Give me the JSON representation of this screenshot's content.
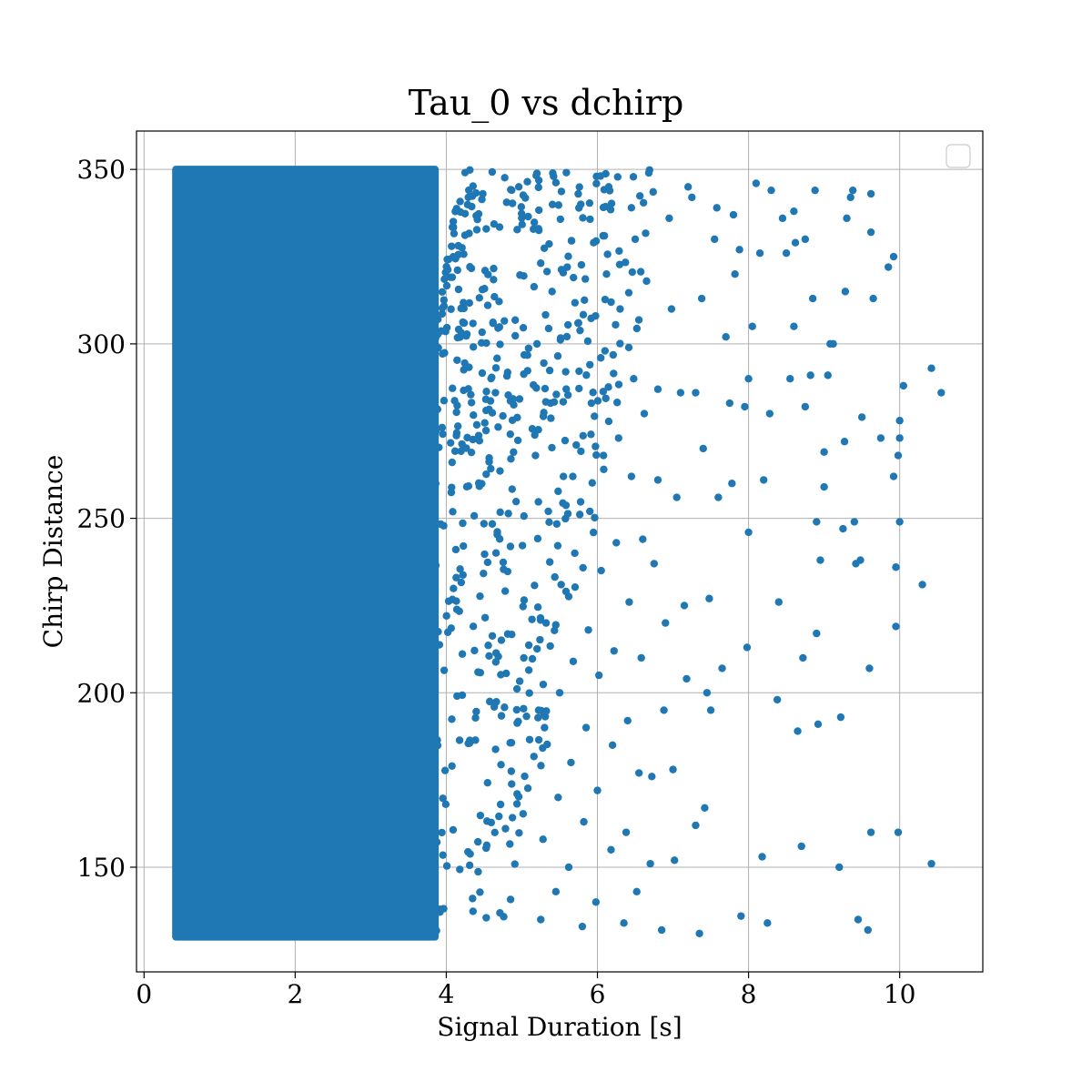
{
  "chart_data": {
    "type": "scatter",
    "title": "Tau_0 vs dchirp",
    "xlabel": "Signal Duration [s]",
    "ylabel": "Chirp Distance",
    "xlim": [
      -0.1,
      11.1
    ],
    "ylim": [
      120,
      361
    ],
    "xticks": [
      0,
      2,
      4,
      6,
      8,
      10
    ],
    "yticks": [
      150,
      200,
      250,
      300,
      350
    ],
    "grid": true,
    "legend": "top-right",
    "legend_entries": [],
    "color": "#1f77b4",
    "dense_region": {
      "x": [
        0.42,
        3.9
      ],
      "y": [
        130,
        350
      ]
    },
    "points": [
      [
        10.55,
        286
      ],
      [
        10.42,
        293
      ],
      [
        10.3,
        231
      ],
      [
        10.42,
        151
      ],
      [
        10.05,
        288
      ],
      [
        10.0,
        278
      ],
      [
        10.0,
        273
      ],
      [
        9.98,
        268
      ],
      [
        10.0,
        249
      ],
      [
        9.98,
        160
      ],
      [
        9.92,
        262
      ],
      [
        9.95,
        236
      ],
      [
        9.95,
        219
      ],
      [
        9.92,
        325
      ],
      [
        9.85,
        322
      ],
      [
        9.75,
        273
      ],
      [
        9.65,
        313
      ],
      [
        9.62,
        343
      ],
      [
        9.62,
        332
      ],
      [
        9.6,
        207
      ],
      [
        9.62,
        160
      ],
      [
        9.58,
        132
      ],
      [
        9.5,
        279
      ],
      [
        9.48,
        238
      ],
      [
        9.45,
        135
      ],
      [
        9.42,
        237
      ],
      [
        9.4,
        249
      ],
      [
        9.38,
        344
      ],
      [
        9.35,
        342
      ],
      [
        9.3,
        336
      ],
      [
        9.28,
        315
      ],
      [
        9.27,
        272
      ],
      [
        9.25,
        247
      ],
      [
        9.22,
        193
      ],
      [
        9.2,
        150
      ],
      [
        9.12,
        300
      ],
      [
        9.08,
        300
      ],
      [
        9.05,
        291
      ],
      [
        9.0,
        269
      ],
      [
        9.0,
        259
      ],
      [
        8.95,
        238
      ],
      [
        8.92,
        191
      ],
      [
        8.9,
        217
      ],
      [
        8.9,
        249
      ],
      [
        8.88,
        344
      ],
      [
        8.85,
        313
      ],
      [
        8.82,
        291
      ],
      [
        8.75,
        330
      ],
      [
        8.75,
        282
      ],
      [
        8.72,
        210
      ],
      [
        8.7,
        156
      ],
      [
        8.65,
        189
      ],
      [
        8.62,
        329
      ],
      [
        8.6,
        338
      ],
      [
        8.6,
        305
      ],
      [
        8.55,
        290
      ],
      [
        8.5,
        326
      ],
      [
        8.45,
        336
      ],
      [
        8.4,
        226
      ],
      [
        8.38,
        198
      ],
      [
        8.3,
        344
      ],
      [
        8.28,
        280
      ],
      [
        8.25,
        134
      ],
      [
        8.2,
        261
      ],
      [
        8.18,
        153
      ],
      [
        8.15,
        326
      ],
      [
        8.1,
        346
      ],
      [
        8.05,
        305
      ],
      [
        8.0,
        246
      ],
      [
        8.0,
        290
      ],
      [
        7.98,
        213
      ],
      [
        7.95,
        282
      ],
      [
        7.9,
        136
      ],
      [
        7.88,
        327
      ],
      [
        7.82,
        320
      ],
      [
        7.8,
        337
      ],
      [
        7.78,
        260
      ],
      [
        7.75,
        283
      ],
      [
        7.7,
        302
      ],
      [
        7.65,
        207
      ],
      [
        7.6,
        256
      ],
      [
        7.58,
        339
      ],
      [
        7.55,
        330
      ],
      [
        7.5,
        195
      ],
      [
        7.48,
        227
      ],
      [
        7.45,
        200
      ],
      [
        7.42,
        167
      ],
      [
        7.4,
        270
      ],
      [
        7.38,
        313
      ],
      [
        7.35,
        131
      ],
      [
        7.3,
        286
      ],
      [
        7.3,
        162
      ],
      [
        7.25,
        342
      ],
      [
        7.2,
        345
      ],
      [
        7.18,
        204
      ],
      [
        7.15,
        225
      ],
      [
        7.1,
        286
      ],
      [
        7.05,
        256
      ],
      [
        7.02,
        152
      ],
      [
        7.0,
        178
      ],
      [
        6.98,
        310
      ],
      [
        6.95,
        336
      ],
      [
        6.9,
        220
      ],
      [
        6.88,
        195
      ],
      [
        6.85,
        132
      ],
      [
        6.8,
        261
      ],
      [
        6.8,
        287
      ],
      [
        6.75,
        237
      ],
      [
        6.72,
        176
      ],
      [
        6.7,
        151
      ],
      [
        6.68,
        349
      ],
      [
        6.65,
        318
      ],
      [
        6.62,
        280
      ],
      [
        6.6,
        244
      ],
      [
        6.58,
        210
      ],
      [
        6.55,
        177
      ],
      [
        6.52,
        143
      ],
      [
        6.5,
        330
      ],
      [
        6.48,
        290
      ],
      [
        6.45,
        262
      ],
      [
        6.42,
        226
      ],
      [
        6.4,
        192
      ],
      [
        6.38,
        160
      ],
      [
        6.35,
        134
      ],
      [
        6.3,
        310
      ],
      [
        6.28,
        273
      ],
      [
        6.25,
        243
      ],
      [
        6.22,
        212
      ],
      [
        6.2,
        185
      ],
      [
        6.18,
        155
      ],
      [
        6.15,
        345
      ],
      [
        6.12,
        320
      ],
      [
        6.1,
        298
      ],
      [
        6.08,
        268
      ],
      [
        6.05,
        235
      ],
      [
        6.02,
        205
      ],
      [
        6.0,
        172
      ],
      [
        5.98,
        140
      ],
      [
        5.95,
        329
      ],
      [
        5.92,
        283
      ],
      [
        5.9,
        252
      ],
      [
        5.88,
        218
      ],
      [
        5.85,
        190
      ],
      [
        5.82,
        163
      ],
      [
        5.8,
        133
      ],
      [
        5.78,
        340
      ],
      [
        5.75,
        306
      ],
      [
        5.72,
        271
      ],
      [
        5.7,
        240
      ],
      [
        5.68,
        209
      ],
      [
        5.65,
        180
      ],
      [
        5.62,
        150
      ],
      [
        5.6,
        322
      ],
      [
        5.58,
        292
      ],
      [
        5.55,
        262
      ],
      [
        5.52,
        231
      ],
      [
        5.5,
        200
      ],
      [
        5.48,
        170
      ],
      [
        5.45,
        143
      ],
      [
        5.42,
        348
      ],
      [
        5.4,
        315
      ],
      [
        5.38,
        283
      ],
      [
        5.35,
        252
      ],
      [
        5.32,
        220
      ],
      [
        5.3,
        190
      ],
      [
        5.28,
        158
      ],
      [
        5.25,
        135
      ],
      [
        5.22,
        333
      ],
      [
        5.2,
        300
      ],
      [
        5.18,
        268
      ]
    ]
  }
}
